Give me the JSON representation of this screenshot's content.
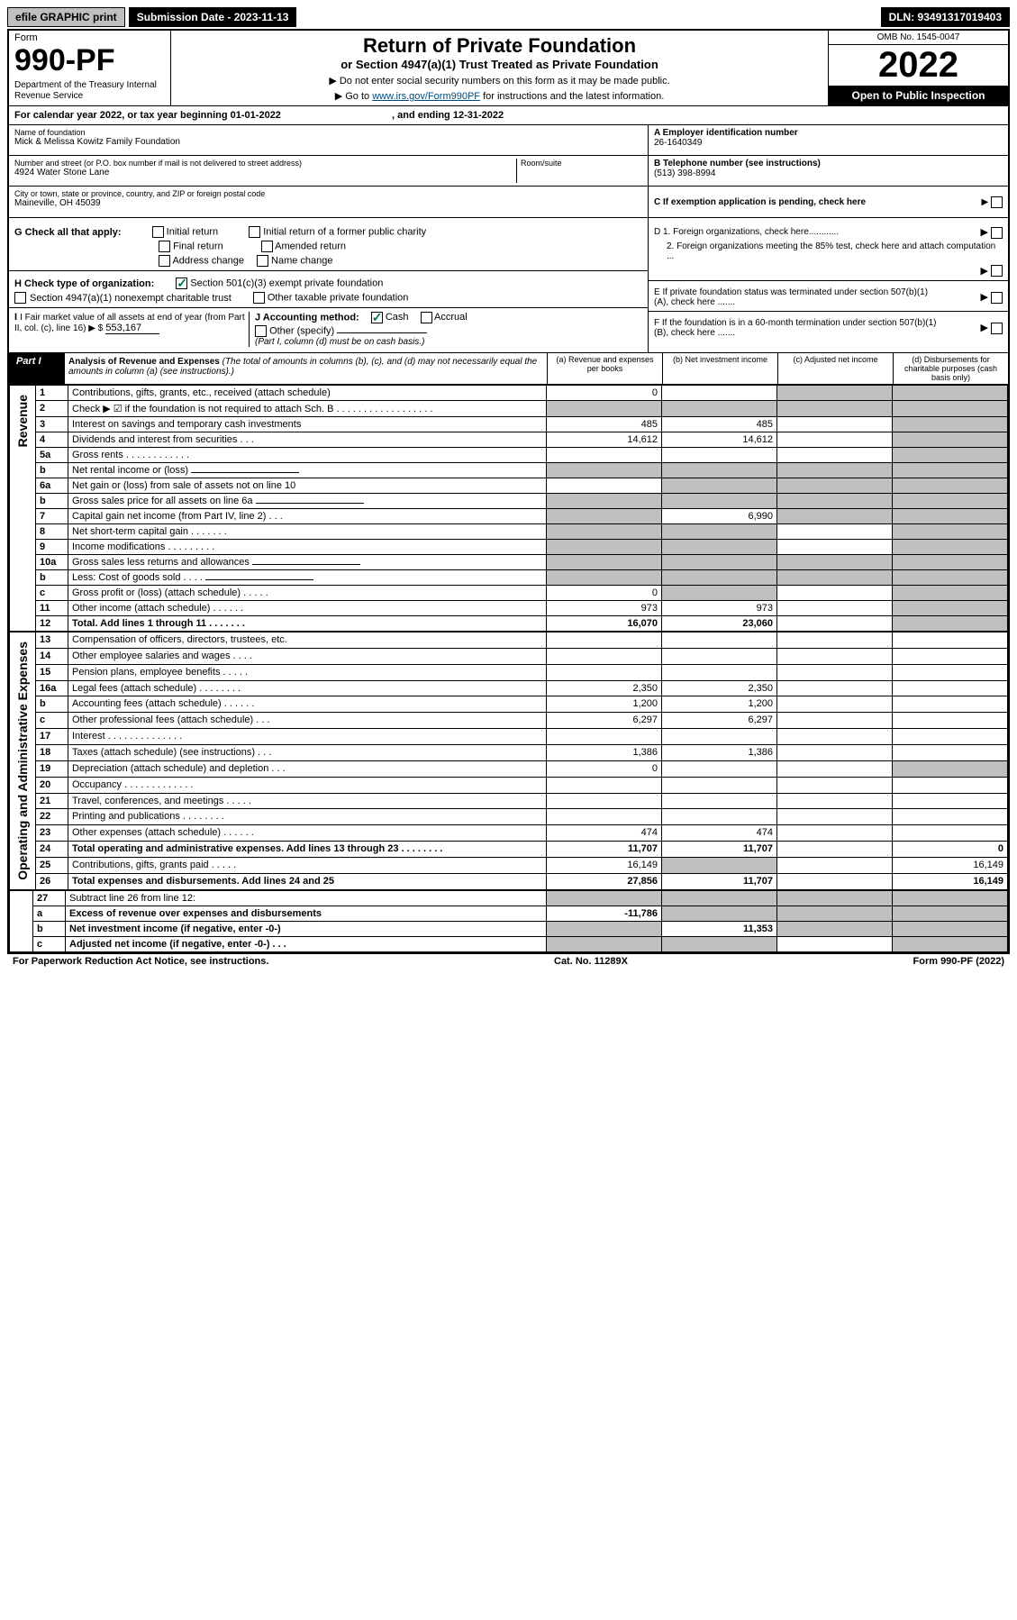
{
  "top": {
    "efile": "efile GRAPHIC print",
    "subdate_label": "Submission Date - 2023-11-13",
    "dln": "DLN: 93491317019403"
  },
  "header": {
    "form_word": "Form",
    "form_no": "990-PF",
    "dept": "Department of the Treasury\nInternal Revenue Service",
    "title": "Return of Private Foundation",
    "subtitle": "or Section 4947(a)(1) Trust Treated as Private Foundation",
    "instr1": "▶ Do not enter social security numbers on this form as it may be made public.",
    "instr2_pre": "▶ Go to ",
    "instr2_link": "www.irs.gov/Form990PF",
    "instr2_post": " for instructions and the latest information.",
    "omb": "OMB No. 1545-0047",
    "year": "2022",
    "open": "Open to Public Inspection"
  },
  "calendar": {
    "text_pre": "For calendar year 2022, or tax year beginning ",
    "begin": "01-01-2022",
    "mid": " , and ending ",
    "end": "12-31-2022"
  },
  "info": {
    "name_label": "Name of foundation",
    "name": "Mick & Melissa Kowitz Family Foundation",
    "addr_label": "Number and street (or P.O. box number if mail is not delivered to street address)",
    "addr": "4924 Water Stone Lane",
    "room_label": "Room/suite",
    "city_label": "City or town, state or province, country, and ZIP or foreign postal code",
    "city": "Maineville, OH  45039",
    "ein_label": "A Employer identification number",
    "ein": "26-1640349",
    "tel_label": "B Telephone number (see instructions)",
    "tel": "(513) 398-8994",
    "c_label": "C If exemption application is pending, check here"
  },
  "checks": {
    "g_label": "G Check all that apply:",
    "g_opts": [
      "Initial return",
      "Initial return of a former public charity",
      "Final return",
      "Amended return",
      "Address change",
      "Name change"
    ],
    "h_label": "H Check type of organization:",
    "h_opt1": "Section 501(c)(3) exempt private foundation",
    "h_opt2": "Section 4947(a)(1) nonexempt charitable trust",
    "h_opt3": "Other taxable private foundation",
    "i_label": "I Fair market value of all assets at end of year (from Part II, col. (c), line 16) ▶ $",
    "i_val": "553,167",
    "j_label": "J Accounting method:",
    "j_cash": "Cash",
    "j_accrual": "Accrual",
    "j_other": "Other (specify)",
    "j_note": "(Part I, column (d) must be on cash basis.)",
    "d1": "D 1. Foreign organizations, check here............",
    "d2": "2. Foreign organizations meeting the 85% test, check here and attach computation ...",
    "e": "E If private foundation status was terminated under section 507(b)(1)(A), check here .......",
    "f": "F If the foundation is in a 60-month termination under section 507(b)(1)(B), check here ......."
  },
  "part1": {
    "label": "Part I",
    "title": "Analysis of Revenue and Expenses",
    "note": " (The total of amounts in columns (b), (c), and (d) may not necessarily equal the amounts in column (a) (see instructions).)",
    "col_a": "(a) Revenue and expenses per books",
    "col_b": "(b) Net investment income",
    "col_c": "(c) Adjusted net income",
    "col_d": "(d) Disbursements for charitable purposes (cash basis only)"
  },
  "sections": {
    "revenue": "Revenue",
    "expenses": "Operating and Administrative Expenses"
  },
  "rows": [
    {
      "n": "1",
      "d": "Contributions, gifts, grants, etc., received (attach schedule)",
      "a": "0",
      "b": "",
      "c": "g",
      "dd": "g"
    },
    {
      "n": "2",
      "d": "Check ▶ ☑ if the foundation is not required to attach Sch. B   . . . . . . . . . . . . . . . . . .",
      "a": "g",
      "b": "g",
      "c": "g",
      "dd": "g"
    },
    {
      "n": "3",
      "d": "Interest on savings and temporary cash investments",
      "a": "485",
      "b": "485",
      "c": "",
      "dd": "g"
    },
    {
      "n": "4",
      "d": "Dividends and interest from securities   . . .",
      "a": "14,612",
      "b": "14,612",
      "c": "",
      "dd": "g"
    },
    {
      "n": "5a",
      "d": "Gross rents   . . . . . . . . . . . .",
      "a": "",
      "b": "",
      "c": "",
      "dd": "g"
    },
    {
      "n": "b",
      "d": "Net rental income or (loss)",
      "a": "g",
      "b": "g",
      "c": "g",
      "dd": "g",
      "inline": true
    },
    {
      "n": "6a",
      "d": "Net gain or (loss) from sale of assets not on line 10",
      "a": "",
      "b": "g",
      "c": "g",
      "dd": "g"
    },
    {
      "n": "b",
      "d": "Gross sales price for all assets on line 6a",
      "a": "g",
      "b": "g",
      "c": "g",
      "dd": "g",
      "inline": true
    },
    {
      "n": "7",
      "d": "Capital gain net income (from Part IV, line 2)   . . .",
      "a": "g",
      "b": "6,990",
      "c": "g",
      "dd": "g"
    },
    {
      "n": "8",
      "d": "Net short-term capital gain   . . . . . . .",
      "a": "g",
      "b": "g",
      "c": "",
      "dd": "g"
    },
    {
      "n": "9",
      "d": "Income modifications . . . . . . . . .",
      "a": "g",
      "b": "g",
      "c": "",
      "dd": "g"
    },
    {
      "n": "10a",
      "d": "Gross sales less returns and allowances",
      "a": "g",
      "b": "g",
      "c": "g",
      "dd": "g",
      "inline": true
    },
    {
      "n": "b",
      "d": "Less: Cost of goods sold   . . . .",
      "a": "g",
      "b": "g",
      "c": "g",
      "dd": "g",
      "inline": true
    },
    {
      "n": "c",
      "d": "Gross profit or (loss) (attach schedule)   . . . . .",
      "a": "0",
      "b": "g",
      "c": "",
      "dd": "g"
    },
    {
      "n": "11",
      "d": "Other income (attach schedule)   . . . . . .",
      "a": "973",
      "b": "973",
      "c": "",
      "dd": "g"
    },
    {
      "n": "12",
      "d": "Total. Add lines 1 through 11   . . . . . . .",
      "a": "16,070",
      "b": "23,060",
      "c": "",
      "dd": "g",
      "bold": true
    }
  ],
  "exp_rows": [
    {
      "n": "13",
      "d": "Compensation of officers, directors, trustees, etc.",
      "a": "",
      "b": "",
      "c": "",
      "dd": ""
    },
    {
      "n": "14",
      "d": "Other employee salaries and wages   . . . .",
      "a": "",
      "b": "",
      "c": "",
      "dd": ""
    },
    {
      "n": "15",
      "d": "Pension plans, employee benefits . . . . .",
      "a": "",
      "b": "",
      "c": "",
      "dd": ""
    },
    {
      "n": "16a",
      "d": "Legal fees (attach schedule) . . . . . . . .",
      "a": "2,350",
      "b": "2,350",
      "c": "",
      "dd": ""
    },
    {
      "n": "b",
      "d": "Accounting fees (attach schedule) . . . . . .",
      "a": "1,200",
      "b": "1,200",
      "c": "",
      "dd": ""
    },
    {
      "n": "c",
      "d": "Other professional fees (attach schedule)   . . .",
      "a": "6,297",
      "b": "6,297",
      "c": "",
      "dd": ""
    },
    {
      "n": "17",
      "d": "Interest . . . . . . . . . . . . . .",
      "a": "",
      "b": "",
      "c": "",
      "dd": ""
    },
    {
      "n": "18",
      "d": "Taxes (attach schedule) (see instructions)   . . .",
      "a": "1,386",
      "b": "1,386",
      "c": "",
      "dd": ""
    },
    {
      "n": "19",
      "d": "Depreciation (attach schedule) and depletion   . . .",
      "a": "0",
      "b": "",
      "c": "",
      "dd": "g"
    },
    {
      "n": "20",
      "d": "Occupancy . . . . . . . . . . . . .",
      "a": "",
      "b": "",
      "c": "",
      "dd": ""
    },
    {
      "n": "21",
      "d": "Travel, conferences, and meetings . . . . .",
      "a": "",
      "b": "",
      "c": "",
      "dd": ""
    },
    {
      "n": "22",
      "d": "Printing and publications . . . . . . . .",
      "a": "",
      "b": "",
      "c": "",
      "dd": ""
    },
    {
      "n": "23",
      "d": "Other expenses (attach schedule) . . . . . .",
      "a": "474",
      "b": "474",
      "c": "",
      "dd": ""
    },
    {
      "n": "24",
      "d": "Total operating and administrative expenses. Add lines 13 through 23   . . . . . . . .",
      "a": "11,707",
      "b": "11,707",
      "c": "",
      "dd": "0",
      "bold": true
    },
    {
      "n": "25",
      "d": "Contributions, gifts, grants paid   . . . . .",
      "a": "16,149",
      "b": "g",
      "c": "",
      "dd": "16,149"
    },
    {
      "n": "26",
      "d": "Total expenses and disbursements. Add lines 24 and 25",
      "a": "27,856",
      "b": "11,707",
      "c": "",
      "dd": "16,149",
      "bold": true
    }
  ],
  "bottom_rows": [
    {
      "n": "27",
      "d": "Subtract line 26 from line 12:",
      "a": "g",
      "b": "g",
      "c": "g",
      "dd": "g"
    },
    {
      "n": "a",
      "d": "Excess of revenue over expenses and disbursements",
      "a": "-11,786",
      "b": "g",
      "c": "g",
      "dd": "g",
      "bold": true
    },
    {
      "n": "b",
      "d": "Net investment income (if negative, enter -0-)",
      "a": "g",
      "b": "11,353",
      "c": "g",
      "dd": "g",
      "bold": true
    },
    {
      "n": "c",
      "d": "Adjusted net income (if negative, enter -0-)   . . .",
      "a": "g",
      "b": "g",
      "c": "",
      "dd": "g",
      "bold": true
    }
  ],
  "footer": {
    "left": "For Paperwork Reduction Act Notice, see instructions.",
    "mid": "Cat. No. 11289X",
    "right": "Form 990-PF (2022)"
  }
}
